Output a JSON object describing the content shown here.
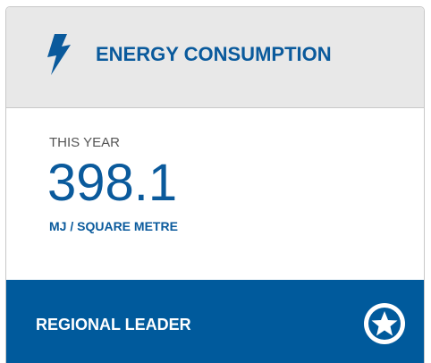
{
  "card": {
    "header": {
      "title": "ENERGY CONSUMPTION"
    },
    "body": {
      "label": "THIS YEAR",
      "value": "398.1",
      "unit": "MJ / SQUARE METRE"
    },
    "footer": {
      "text": "REGIONAL LEADER"
    }
  }
}
